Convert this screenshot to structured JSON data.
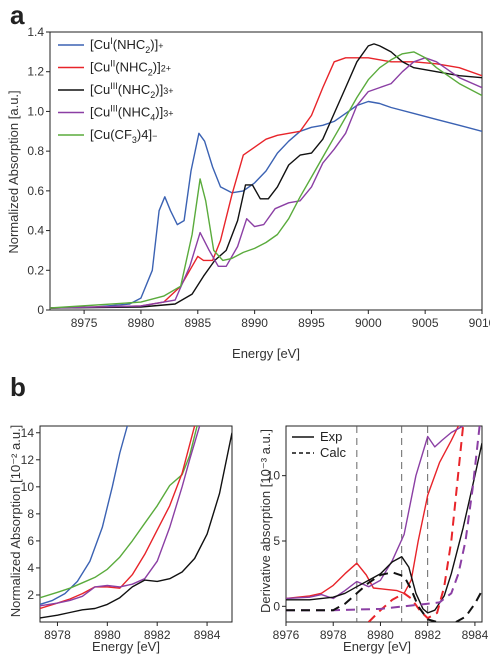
{
  "panels": {
    "a": "a",
    "b": "b"
  },
  "colors": {
    "blue": "#3b62b3",
    "red": "#e8242a",
    "black": "#111111",
    "purple": "#8b3fa4",
    "green": "#5aab3c"
  },
  "chart_data": [
    {
      "id": "a",
      "type": "line",
      "xlabel": "Energy [eV]",
      "ylabel": "Normalized Absorption [a.u.]",
      "xlim": [
        8972,
        9010
      ],
      "ylim": [
        0,
        1.4
      ],
      "xticks": [
        8975,
        8980,
        8985,
        8990,
        8995,
        9000,
        9005,
        9010
      ],
      "yticks": [
        0,
        0.2,
        0.4,
        0.6,
        0.8,
        1.0,
        1.2,
        1.4
      ],
      "legend_position": "top-left",
      "series": [
        {
          "name": "[CuI(NHC2)]+",
          "legend": {
            "base": "[Cu",
            "sup": "I",
            "mid": "(NHC",
            "sub": "2",
            "end": ")]",
            "charge": "+"
          },
          "color": "#3b62b3",
          "x": [
            8972,
            8976,
            8979,
            8980,
            8981,
            8981.6,
            8982.1,
            8982.6,
            8983.2,
            8983.8,
            8984.4,
            8985.1,
            8985.6,
            8986.3,
            8987,
            8988,
            8989,
            8990,
            8991,
            8992,
            8993,
            8994,
            8995,
            8996,
            8997,
            8998,
            8999,
            9000,
            9001,
            9002,
            9004,
            9006,
            9008,
            9010
          ],
          "y": [
            0.01,
            0.015,
            0.03,
            0.06,
            0.2,
            0.5,
            0.57,
            0.5,
            0.43,
            0.45,
            0.7,
            0.89,
            0.85,
            0.72,
            0.62,
            0.59,
            0.6,
            0.64,
            0.7,
            0.79,
            0.85,
            0.9,
            0.92,
            0.93,
            0.95,
            0.99,
            1.03,
            1.05,
            1.04,
            1.02,
            0.99,
            0.96,
            0.93,
            0.9
          ]
        },
        {
          "name": "[CuII(NHC2)]2+",
          "legend": {
            "base": "[Cu",
            "sup": "II",
            "mid": "(NHC",
            "sub": "2",
            "end": ")]",
            "charge": "2+"
          },
          "color": "#e8242a",
          "x": [
            8972,
            8980,
            8982,
            8983.5,
            8984.5,
            8985,
            8985.5,
            8986.3,
            8987,
            8988,
            8989,
            8990,
            8991,
            8992,
            8993,
            8994,
            8995,
            8996,
            8997,
            8998,
            8999,
            9000,
            9001,
            9002,
            9004,
            9006,
            9008,
            9010
          ],
          "y": [
            0.01,
            0.02,
            0.04,
            0.12,
            0.22,
            0.27,
            0.25,
            0.25,
            0.35,
            0.58,
            0.78,
            0.82,
            0.86,
            0.88,
            0.89,
            0.9,
            0.98,
            1.12,
            1.25,
            1.27,
            1.27,
            1.27,
            1.26,
            1.25,
            1.25,
            1.24,
            1.22,
            1.18
          ]
        },
        {
          "name": "[CuIII(NHC2)]3+",
          "legend": {
            "base": "[Cu",
            "sup": "III",
            "mid": "(NHC",
            "sub": "2",
            "end": ")]",
            "charge": "3+"
          },
          "color": "#111111",
          "x": [
            8972,
            8980,
            8983,
            8984.5,
            8985.5,
            8986.5,
            8987.5,
            8988.5,
            8989.2,
            8989.8,
            8990.5,
            8991.2,
            8992,
            8993,
            8994,
            8995,
            8996,
            8997,
            8998,
            8999,
            9000,
            9000.5,
            9001,
            9002,
            9003,
            9004,
            9006,
            9008,
            9010
          ],
          "y": [
            0.01,
            0.015,
            0.03,
            0.08,
            0.17,
            0.25,
            0.3,
            0.45,
            0.63,
            0.63,
            0.56,
            0.56,
            0.62,
            0.73,
            0.78,
            0.79,
            0.86,
            0.99,
            1.12,
            1.25,
            1.33,
            1.34,
            1.33,
            1.3,
            1.25,
            1.22,
            1.2,
            1.18,
            1.17
          ]
        },
        {
          "name": "[CuIII(NHC4)]3+",
          "legend": {
            "base": "[Cu",
            "sup": "III",
            "mid": "(NHC",
            "sub": "4",
            "end": ")]",
            "charge": "3+"
          },
          "color": "#8b3fa4",
          "x": [
            8972,
            8980,
            8983,
            8984.3,
            8985.2,
            8986,
            8986.8,
            8987.5,
            8988.5,
            8989.3,
            8990,
            8990.8,
            8991.8,
            8993,
            8994,
            8995,
            8996,
            8997,
            8998,
            8999,
            9000,
            9001,
            9002,
            9003,
            9004,
            9005,
            9006,
            9008,
            9010
          ],
          "y": [
            0.01,
            0.02,
            0.05,
            0.22,
            0.39,
            0.3,
            0.22,
            0.22,
            0.32,
            0.46,
            0.42,
            0.43,
            0.51,
            0.54,
            0.55,
            0.62,
            0.74,
            0.81,
            0.89,
            1.03,
            1.1,
            1.12,
            1.14,
            1.2,
            1.25,
            1.27,
            1.25,
            1.17,
            1.12
          ]
        },
        {
          "name": "[Cu(CF3)4]-",
          "legend": {
            "base": "[Cu(CF",
            "sup": "",
            "mid": "",
            "sub": "3",
            "end": ")4]",
            "charge": "−"
          },
          "color": "#5aab3c",
          "x": [
            8972,
            8980,
            8982,
            8983.5,
            8984.5,
            8985.2,
            8985.7,
            8986.4,
            8987.2,
            8988,
            8989,
            8990,
            8991,
            8992,
            8993,
            8994,
            8995,
            8996,
            8997,
            8998,
            8999,
            9000,
            9001,
            9002,
            9003,
            9004,
            9005,
            9006,
            9008,
            9010
          ],
          "y": [
            0.01,
            0.04,
            0.07,
            0.12,
            0.38,
            0.66,
            0.55,
            0.3,
            0.25,
            0.26,
            0.29,
            0.31,
            0.34,
            0.38,
            0.46,
            0.57,
            0.67,
            0.77,
            0.87,
            0.97,
            1.07,
            1.16,
            1.22,
            1.26,
            1.29,
            1.3,
            1.27,
            1.22,
            1.14,
            1.08
          ]
        }
      ]
    },
    {
      "id": "b-left",
      "type": "line",
      "xlabel": "Energy [eV]",
      "ylabel": "Normalized Absorption [10⁻² a.u.]",
      "xlim": [
        8977.3,
        8985
      ],
      "ylim": [
        0,
        14.5
      ],
      "xticks": [
        8978,
        8980,
        8982,
        8984
      ],
      "yticks": [
        2,
        4,
        6,
        8,
        10,
        12,
        14
      ],
      "series": [
        {
          "name": "[CuI(NHC2)]+",
          "color": "#3b62b3",
          "x": [
            8977.3,
            8977.8,
            8978.3,
            8978.8,
            8979.3,
            8979.8,
            8980.2,
            8980.5,
            8980.8
          ],
          "y": [
            1.3,
            1.6,
            2.1,
            3.0,
            4.5,
            7.0,
            10.0,
            12.5,
            14.5
          ]
        },
        {
          "name": "[Cu(CF3)4]-",
          "color": "#5aab3c",
          "x": [
            8977.3,
            8978,
            8978.5,
            8979,
            8979.5,
            8980,
            8980.5,
            8981,
            8981.5,
            8982,
            8982.5,
            8983,
            8983.3,
            8983.6
          ],
          "y": [
            1.8,
            2.2,
            2.5,
            2.9,
            3.3,
            3.9,
            4.8,
            6.0,
            7.3,
            8.6,
            10.1,
            10.9,
            12.3,
            14.5
          ]
        },
        {
          "name": "[CuII(NHC2)]2+",
          "color": "#e8242a",
          "x": [
            8977.3,
            8978,
            8978.5,
            8979,
            8979.5,
            8980,
            8980.5,
            8981,
            8981.5,
            8982,
            8982.5,
            8983,
            8983.5
          ],
          "y": [
            1.0,
            1.4,
            1.7,
            2.1,
            2.6,
            2.6,
            2.5,
            3.5,
            5.0,
            6.8,
            8.6,
            11.0,
            14.5
          ]
        },
        {
          "name": "[CuIII(NHC4)]3+",
          "color": "#8b3fa4",
          "x": [
            8977.3,
            8978,
            8978.5,
            8979,
            8979.5,
            8980,
            8980.5,
            8981,
            8981.5,
            8982,
            8982.5,
            8983,
            8983.3,
            8983.7
          ],
          "y": [
            1.2,
            1.4,
            1.6,
            1.9,
            2.6,
            2.7,
            2.6,
            2.8,
            3.2,
            4.5,
            7.0,
            10.0,
            12.0,
            14.5
          ]
        },
        {
          "name": "[CuIII(NHC2)]3+",
          "color": "#111111",
          "x": [
            8977.3,
            8978,
            8978.5,
            8979,
            8979.5,
            8980,
            8980.5,
            8981,
            8981.5,
            8982,
            8982.5,
            8983,
            8983.5,
            8984,
            8984.5,
            8985
          ],
          "y": [
            0.3,
            0.5,
            0.7,
            0.9,
            1.0,
            1.3,
            1.8,
            2.6,
            3.1,
            3.0,
            3.2,
            3.7,
            4.7,
            6.5,
            9.5,
            14.0
          ]
        }
      ]
    },
    {
      "id": "b-right",
      "type": "line",
      "xlabel": "Energy [eV]",
      "ylabel": "Derivative absorption [10⁻³ a.u.]",
      "xlim": [
        8976,
        8984.3
      ],
      "ylim": [
        -1.2,
        13.8
      ],
      "xticks": [
        8976,
        8978,
        8980,
        8982,
        8984
      ],
      "yticks": [
        0,
        5,
        10
      ],
      "legend_position": "top-left",
      "legend": [
        {
          "label": "Exp",
          "dash": "solid"
        },
        {
          "label": "Calc",
          "dash": "dashed"
        }
      ],
      "vlines": [
        8979,
        8980.9,
        8982
      ],
      "series": [
        {
          "name": "[CuII(NHC2)]2+ Exp",
          "color": "#e8242a",
          "dashed": false,
          "x": [
            8976,
            8977,
            8977.5,
            8978,
            8978.5,
            8979,
            8979.4,
            8979.7,
            8980.2,
            8980.7,
            8981,
            8981.3,
            8981.6,
            8982,
            8982.5,
            8983,
            8983.3
          ],
          "y": [
            0.6,
            0.8,
            1.0,
            1.6,
            2.5,
            3.3,
            2.4,
            1.4,
            1.3,
            1.2,
            1.0,
            2.0,
            5.0,
            8.5,
            11.0,
            12.7,
            13.8
          ]
        },
        {
          "name": "[CuIII(NHC4)]3+ Exp",
          "color": "#8b3fa4",
          "dashed": false,
          "x": [
            8976,
            8977,
            8977.5,
            8978,
            8978.5,
            8979,
            8979.5,
            8980,
            8980.5,
            8981,
            8981.5,
            8982,
            8982.3,
            8982.6,
            8983,
            8983.5
          ],
          "y": [
            0.6,
            0.7,
            0.9,
            0.6,
            1.2,
            1.9,
            1.5,
            2.0,
            3.5,
            5.5,
            10.0,
            13.0,
            12.2,
            12.7,
            13.3,
            13.8
          ]
        },
        {
          "name": "[CuIII(NHC2)]3+ Exp",
          "color": "#111111",
          "dashed": false,
          "x": [
            8976,
            8977,
            8978,
            8978.5,
            8979,
            8979.5,
            8980,
            8980.5,
            8980.9,
            8981.2,
            8981.5,
            8981.8,
            8982,
            8982.3,
            8982.7,
            8983,
            8983.5,
            8984,
            8984.3
          ],
          "y": [
            0.5,
            0.5,
            0.7,
            1.0,
            1.5,
            2.0,
            2.5,
            3.4,
            3.8,
            3.0,
            1.0,
            -0.2,
            -0.5,
            -0.3,
            0.8,
            2.5,
            6.0,
            10.0,
            12.5
          ]
        },
        {
          "name": "[CuII(NHC2)]2+ Calc",
          "color": "#e8242a",
          "dashed": true,
          "x": [
            8979.5,
            8980,
            8980.5,
            8981,
            8981.3,
            8981.7,
            8982,
            8982.4,
            8982.7,
            8983,
            8983.2,
            8983.5
          ],
          "y": [
            -1.2,
            -0.3,
            0.5,
            1.0,
            0.6,
            -0.4,
            -0.9,
            -0.5,
            1.5,
            5.0,
            8.5,
            13.8
          ]
        },
        {
          "name": "[CuIII(NHC4)]3+ Calc",
          "color": "#8b3fa4",
          "dashed": true,
          "x": [
            8976,
            8978,
            8980,
            8981,
            8982,
            8982.5,
            8983,
            8983.3,
            8983.6,
            8983.9,
            8984.2
          ],
          "y": [
            -0.3,
            -0.3,
            -0.2,
            0.0,
            0.2,
            0.3,
            1.0,
            2.5,
            5.0,
            9.0,
            13.8
          ]
        },
        {
          "name": "[CuIII(NHC2)]3+ Calc",
          "color": "#111111",
          "dashed": true,
          "x": [
            8976,
            8977,
            8978,
            8978.5,
            8979,
            8979.5,
            8980,
            8980.5,
            8981,
            8981.3,
            8981.6,
            8982,
            8982.4
          ],
          "y": [
            -0.3,
            -0.3,
            -0.3,
            0.2,
            1.0,
            1.8,
            2.4,
            2.6,
            2.3,
            1.3,
            0.0,
            -1.0,
            -1.2
          ]
        },
        {
          "name": "[CuIII(NHC2)]3+ Calc (rising)",
          "color": "#111111",
          "dashed": true,
          "x": [
            8983.2,
            8983.6,
            8984,
            8984.3
          ],
          "y": [
            -1.2,
            -0.8,
            0.2,
            1.2
          ]
        }
      ]
    }
  ]
}
